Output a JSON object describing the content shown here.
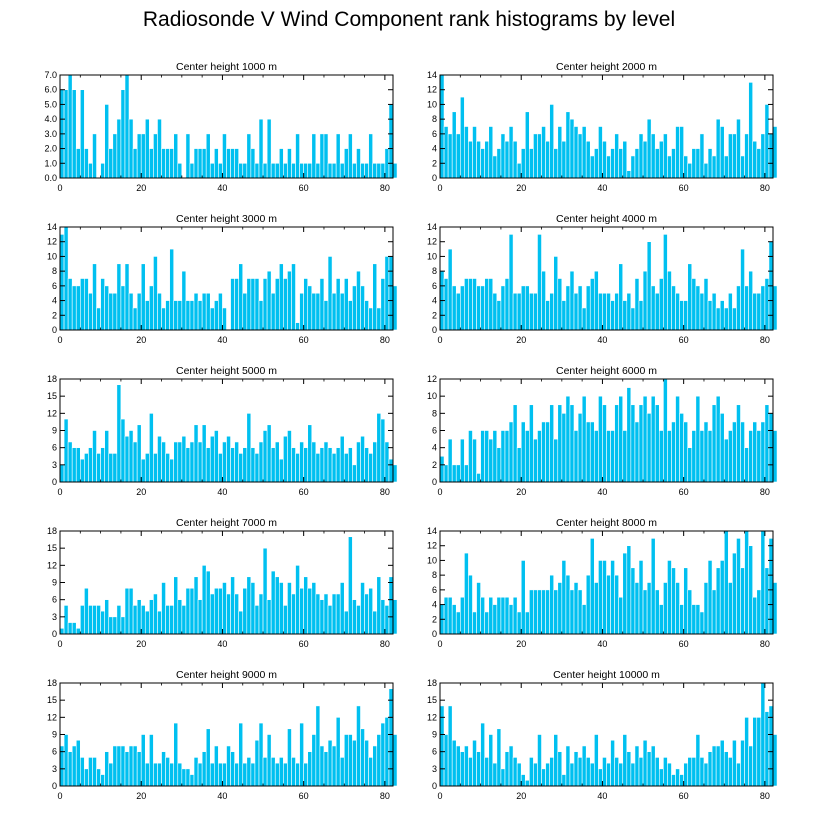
{
  "title": "Radiosonde V Wind Component rank histograms by level",
  "style": {
    "bar_color": "#00c0f0",
    "bar_edge": "#ffffff",
    "axis_color": "#000000"
  },
  "chart_data": [
    {
      "type": "bar",
      "title": "Center height 1000 m",
      "x_ticks": [
        0,
        20,
        40,
        60,
        80
      ],
      "xlim": [
        0,
        82
      ],
      "ylim": [
        0,
        7
      ],
      "y_ticks": [
        0,
        1,
        2,
        3,
        4,
        5,
        6,
        7
      ],
      "y_tick_labels": [
        "0.0",
        "1.0",
        "2.0",
        "3.0",
        "4.0",
        "5.0",
        "6.0",
        "7.0"
      ],
      "values": [
        6,
        6,
        7,
        6,
        2,
        6,
        2,
        1,
        3,
        0,
        1,
        5,
        2,
        3,
        4,
        6,
        7,
        4,
        2,
        3,
        3,
        4,
        2,
        3,
        4,
        2,
        2,
        2,
        3,
        1,
        0,
        3,
        1,
        2,
        2,
        2,
        3,
        1,
        2,
        1,
        3,
        2,
        2,
        2,
        1,
        1,
        3,
        2,
        1,
        4,
        1,
        4,
        1,
        1,
        2,
        1,
        2,
        1,
        3,
        1,
        1,
        1,
        3,
        1,
        3,
        3,
        1,
        1,
        3,
        1,
        2,
        3,
        1,
        2,
        1,
        1,
        3,
        1,
        1,
        1,
        2,
        5,
        1
      ]
    },
    {
      "type": "bar",
      "title": "Center height 2000 m",
      "x_ticks": [
        0,
        20,
        40,
        60,
        80
      ],
      "xlim": [
        0,
        82
      ],
      "ylim": [
        0,
        14
      ],
      "y_ticks": [
        0,
        2,
        4,
        6,
        8,
        10,
        12,
        14
      ],
      "y_tick_labels": [
        "0",
        "2",
        "4",
        "6",
        "8",
        "10",
        "12",
        "14"
      ],
      "values": [
        14,
        7,
        6,
        9,
        6,
        11,
        7,
        5,
        7,
        5,
        4,
        5,
        7,
        3,
        4,
        6,
        5,
        7,
        5,
        2,
        4,
        9,
        4,
        6,
        6,
        7,
        5,
        10,
        4,
        7,
        5,
        9,
        8,
        7,
        6,
        7,
        5,
        3,
        4,
        7,
        5,
        3,
        4,
        6,
        4,
        5,
        1,
        3,
        4,
        6,
        5,
        8,
        6,
        4,
        5,
        6,
        3,
        4,
        7,
        7,
        3,
        2,
        4,
        4,
        6,
        2,
        4,
        3,
        8,
        7,
        3,
        6,
        6,
        8,
        3,
        6,
        13,
        5,
        4,
        6,
        10,
        6,
        7
      ]
    },
    {
      "type": "bar",
      "title": "Center height 3000 m",
      "x_ticks": [
        0,
        20,
        40,
        60,
        80
      ],
      "xlim": [
        0,
        82
      ],
      "ylim": [
        0,
        14
      ],
      "y_ticks": [
        0,
        2,
        4,
        6,
        8,
        10,
        12,
        14
      ],
      "y_tick_labels": [
        "0",
        "2",
        "4",
        "6",
        "8",
        "10",
        "12",
        "14"
      ],
      "values": [
        13,
        14,
        7,
        6,
        6,
        7,
        7,
        5,
        9,
        3,
        7,
        6,
        5,
        5,
        9,
        6,
        9,
        5,
        3,
        5,
        9,
        4,
        6,
        10,
        5,
        3,
        4,
        11,
        4,
        4,
        8,
        4,
        4,
        5,
        4,
        5,
        5,
        3,
        4,
        5,
        3,
        0,
        7,
        7,
        9,
        5,
        7,
        7,
        7,
        4,
        7,
        8,
        5,
        7,
        9,
        7,
        8,
        9,
        1,
        5,
        7,
        6,
        5,
        5,
        7,
        4,
        10,
        5,
        7,
        5,
        7,
        4,
        6,
        8,
        6,
        4,
        3,
        9,
        3,
        7,
        10,
        10,
        6
      ]
    },
    {
      "type": "bar",
      "title": "Center height 4000 m",
      "x_ticks": [
        0,
        20,
        40,
        60,
        80
      ],
      "xlim": [
        0,
        82
      ],
      "ylim": [
        0,
        14
      ],
      "y_ticks": [
        0,
        2,
        4,
        6,
        8,
        10,
        12,
        14
      ],
      "y_tick_labels": [
        "0",
        "2",
        "4",
        "6",
        "8",
        "10",
        "12",
        "14"
      ],
      "values": [
        8,
        7,
        11,
        6,
        5,
        6,
        7,
        7,
        7,
        6,
        6,
        7,
        7,
        5,
        4,
        6,
        7,
        13,
        5,
        5,
        6,
        6,
        5,
        5,
        13,
        8,
        4,
        5,
        10,
        7,
        4,
        6,
        8,
        5,
        6,
        3,
        6,
        7,
        8,
        5,
        5,
        5,
        4,
        5,
        9,
        4,
        5,
        3,
        7,
        4,
        8,
        12,
        6,
        5,
        7,
        13,
        8,
        6,
        5,
        4,
        4,
        9,
        7,
        6,
        5,
        7,
        4,
        5,
        3,
        4,
        3,
        5,
        3,
        6,
        11,
        6,
        8,
        5,
        5,
        6,
        7,
        12,
        6
      ]
    },
    {
      "type": "bar",
      "title": "Center height 5000 m",
      "x_ticks": [
        0,
        20,
        40,
        60,
        80
      ],
      "xlim": [
        0,
        82
      ],
      "ylim": [
        0,
        18
      ],
      "y_ticks": [
        0,
        3,
        6,
        9,
        12,
        15,
        18
      ],
      "y_tick_labels": [
        "0",
        "3",
        "6",
        "9",
        "12",
        "15",
        "18"
      ],
      "values": [
        3,
        11,
        7,
        6,
        6,
        4,
        5,
        6,
        9,
        5,
        6,
        9,
        5,
        5,
        17,
        11,
        8,
        9,
        7,
        10,
        4,
        5,
        12,
        5,
        8,
        7,
        5,
        4,
        7,
        7,
        8,
        6,
        7,
        10,
        7,
        10,
        6,
        8,
        9,
        5,
        7,
        8,
        6,
        7,
        5,
        6,
        12,
        6,
        5,
        7,
        9,
        10,
        6,
        7,
        4,
        8,
        9,
        6,
        5,
        7,
        6,
        10,
        7,
        5,
        6,
        7,
        6,
        5,
        6,
        8,
        5,
        6,
        3,
        7,
        8,
        6,
        5,
        7,
        12,
        11,
        7,
        4,
        3
      ]
    },
    {
      "type": "bar",
      "title": "Center height 6000 m",
      "x_ticks": [
        0,
        20,
        40,
        60,
        80
      ],
      "xlim": [
        0,
        82
      ],
      "ylim": [
        0,
        12
      ],
      "y_ticks": [
        0,
        2,
        4,
        6,
        8,
        10,
        12
      ],
      "y_tick_labels": [
        "0",
        "2",
        "4",
        "6",
        "8",
        "10",
        "12"
      ],
      "values": [
        3,
        2,
        5,
        2,
        2,
        5,
        2,
        6,
        5,
        1,
        6,
        6,
        5,
        6,
        4,
        6,
        6,
        7,
        9,
        4,
        7,
        6,
        9,
        5,
        6,
        7,
        7,
        9,
        5,
        9,
        8,
        10,
        9,
        6,
        8,
        10,
        7,
        7,
        6,
        10,
        9,
        6,
        6,
        9,
        10,
        6,
        11,
        9,
        7,
        9,
        10,
        8,
        10,
        9,
        6,
        12,
        6,
        7,
        10,
        8,
        7,
        4,
        6,
        10,
        6,
        7,
        6,
        9,
        10,
        8,
        5,
        6,
        7,
        9,
        7,
        4,
        6,
        7,
        6,
        7,
        9,
        8,
        6
      ]
    },
    {
      "type": "bar",
      "title": "Center height 7000 m",
      "x_ticks": [
        0,
        20,
        40,
        60,
        80
      ],
      "xlim": [
        0,
        82
      ],
      "ylim": [
        0,
        18
      ],
      "y_ticks": [
        0,
        3,
        6,
        9,
        12,
        15,
        18
      ],
      "y_tick_labels": [
        "0",
        "3",
        "6",
        "9",
        "12",
        "15",
        "18"
      ],
      "values": [
        1,
        5,
        2,
        2,
        1,
        5,
        8,
        5,
        5,
        5,
        4,
        6,
        3,
        3,
        5,
        3,
        8,
        8,
        5,
        6,
        5,
        4,
        6,
        7,
        4,
        9,
        5,
        5,
        10,
        6,
        5,
        8,
        8,
        10,
        6,
        12,
        11,
        7,
        8,
        8,
        9,
        7,
        10,
        7,
        4,
        8,
        10,
        9,
        5,
        7,
        15,
        6,
        11,
        10,
        9,
        5,
        9,
        7,
        12,
        8,
        10,
        8,
        9,
        7,
        6,
        7,
        5,
        7,
        7,
        9,
        4,
        17,
        6,
        5,
        9,
        7,
        8,
        4,
        10,
        6,
        5,
        10,
        6
      ]
    },
    {
      "type": "bar",
      "title": "Center height 8000 m",
      "x_ticks": [
        0,
        20,
        40,
        60,
        80
      ],
      "xlim": [
        0,
        82
      ],
      "ylim": [
        0,
        14
      ],
      "y_ticks": [
        0,
        2,
        4,
        6,
        8,
        10,
        12,
        14
      ],
      "y_tick_labels": [
        "0",
        "2",
        "4",
        "6",
        "8",
        "10",
        "12",
        "14"
      ],
      "values": [
        4,
        5,
        5,
        4,
        3,
        5,
        11,
        8,
        3,
        7,
        5,
        3,
        5,
        4,
        5,
        5,
        5,
        4,
        5,
        3,
        10,
        3,
        6,
        6,
        6,
        6,
        6,
        8,
        6,
        7,
        10,
        8,
        6,
        7,
        6,
        4,
        8,
        13,
        7,
        10,
        10,
        8,
        10,
        8,
        5,
        11,
        12,
        9,
        7,
        10,
        6,
        7,
        13,
        6,
        4,
        7,
        10,
        9,
        7,
        4,
        9,
        6,
        4,
        4,
        3,
        7,
        10,
        6,
        9,
        10,
        14,
        7,
        11,
        13,
        9,
        14,
        12,
        5,
        6,
        14,
        9,
        13,
        7
      ]
    },
    {
      "type": "bar",
      "title": "Center height 9000 m",
      "x_ticks": [
        0,
        20,
        40,
        60,
        80
      ],
      "xlim": [
        0,
        82
      ],
      "ylim": [
        0,
        18
      ],
      "y_ticks": [
        0,
        3,
        6,
        9,
        12,
        15,
        18
      ],
      "y_tick_labels": [
        "0",
        "3",
        "6",
        "9",
        "12",
        "15",
        "18"
      ],
      "values": [
        7,
        9,
        6,
        7,
        8,
        5,
        3,
        5,
        5,
        3,
        2,
        6,
        4,
        7,
        7,
        7,
        6,
        7,
        7,
        6,
        9,
        4,
        9,
        4,
        4,
        6,
        5,
        4,
        11,
        4,
        3,
        3,
        2,
        5,
        4,
        6,
        10,
        4,
        7,
        4,
        4,
        7,
        6,
        4,
        11,
        4,
        5,
        4,
        8,
        11,
        5,
        9,
        5,
        4,
        5,
        4,
        10,
        5,
        4,
        11,
        4,
        6,
        9,
        14,
        7,
        6,
        8,
        7,
        12,
        5,
        9,
        9,
        8,
        14,
        10,
        8,
        5,
        7,
        9,
        11,
        12,
        17,
        9
      ]
    },
    {
      "type": "bar",
      "title": "Center height 10000 m",
      "x_ticks": [
        0,
        20,
        40,
        60,
        80
      ],
      "xlim": [
        0,
        82
      ],
      "ylim": [
        0,
        18
      ],
      "y_ticks": [
        0,
        3,
        6,
        9,
        12,
        15,
        18
      ],
      "y_tick_labels": [
        "0",
        "3",
        "6",
        "9",
        "12",
        "15",
        "18"
      ],
      "values": [
        14,
        9,
        14,
        8,
        7,
        6,
        7,
        5,
        8,
        6,
        11,
        5,
        9,
        4,
        10,
        3,
        6,
        7,
        5,
        4,
        2,
        1,
        5,
        4,
        9,
        3,
        4,
        5,
        9,
        6,
        2,
        7,
        4,
        6,
        5,
        7,
        5,
        4,
        9,
        3,
        5,
        4,
        8,
        5,
        4,
        9,
        6,
        4,
        7,
        5,
        8,
        6,
        7,
        5,
        3,
        5,
        4,
        2,
        3,
        2,
        4,
        5,
        5,
        9,
        5,
        4,
        6,
        7,
        7,
        8,
        6,
        5,
        8,
        4,
        8,
        12,
        7,
        12,
        12,
        18,
        13,
        14,
        9
      ]
    }
  ]
}
